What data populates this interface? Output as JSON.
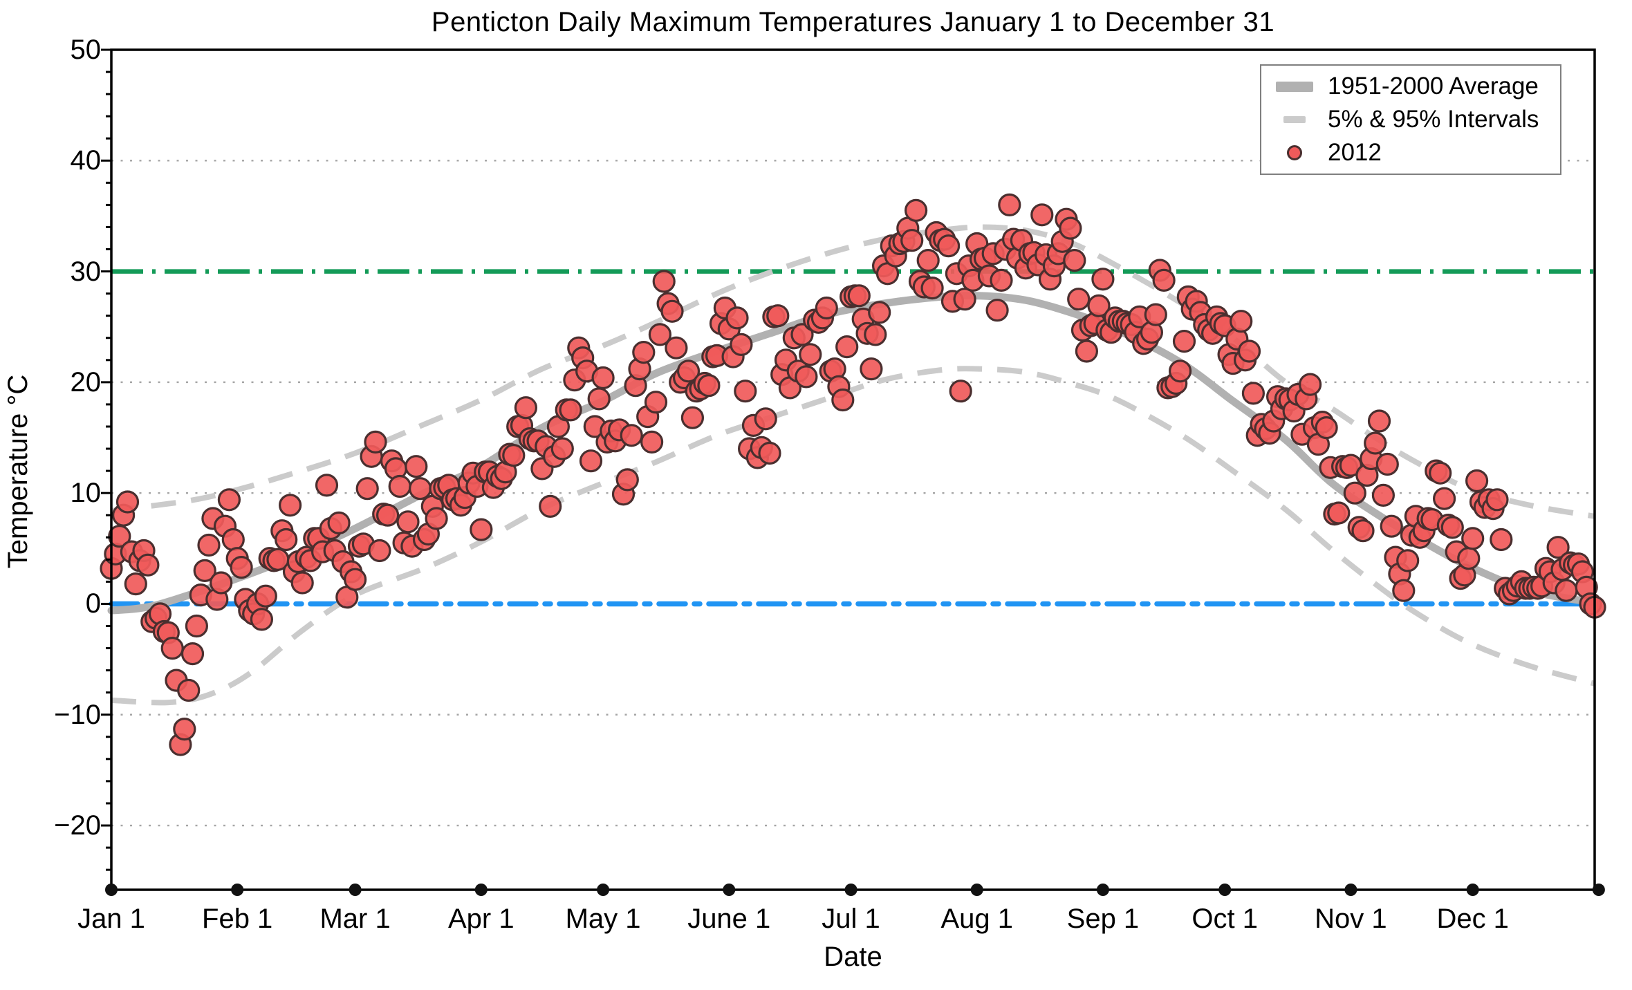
{
  "title": "Penticton Daily Maximum Temperatures January 1 to December 31",
  "legend": {
    "items": [
      {
        "label": "1951-2000 Average",
        "swatch": "thick-gray-line"
      },
      {
        "label": "5% & 95% Intervals",
        "swatch": "gray-dash"
      },
      {
        "label": "2012",
        "swatch": "red-dot"
      }
    ]
  },
  "colors": {
    "scatter_fill": "#f05a5a",
    "scatter_edge": "#4a2f2f",
    "average_line": "#b1b1b1",
    "interval_line": "#cbcbcb",
    "line_30c": "#149b58",
    "line_0c": "#2094f3",
    "gridline": "#a5a5a5",
    "axis": "#000000",
    "legend_border": "#7f7f7f",
    "month_dot": "#111111"
  },
  "chart_data": {
    "type": "scatter",
    "title": "Penticton Daily Maximum Temperatures January 1 to December 31",
    "xlabel": "Date",
    "ylabel": "Temperature °C",
    "ylim": [
      -25.8,
      50
    ],
    "grid": "dotted horizontal at 10-degree steps",
    "legend_position": "top-right",
    "y_ticks": [
      {
        "label": "50",
        "value": 50
      },
      {
        "label": "40",
        "value": 40
      },
      {
        "label": "30",
        "value": 30
      },
      {
        "label": "20",
        "value": 20
      },
      {
        "label": "10",
        "value": 10
      },
      {
        "label": "0",
        "value": 0
      },
      {
        "label": "−10",
        "value": -10
      },
      {
        "label": "−20",
        "value": -20
      }
    ],
    "gridline_values": [
      40,
      20,
      10,
      -10,
      -20
    ],
    "months": [
      {
        "label": "Jan 1",
        "day": 1
      },
      {
        "label": "Feb 1",
        "day": 32
      },
      {
        "label": "Mar 1",
        "day": 61
      },
      {
        "label": "Apr 1",
        "day": 92
      },
      {
        "label": "May 1",
        "day": 122
      },
      {
        "label": "June 1",
        "day": 153
      },
      {
        "label": "Jul 1",
        "day": 183
      },
      {
        "label": "Aug 1",
        "day": 214
      },
      {
        "label": "Sep 1",
        "day": 245
      },
      {
        "label": "Oct 1",
        "day": 275
      },
      {
        "label": "Nov 1",
        "day": 306
      },
      {
        "label": "Dec 1",
        "day": 336
      }
    ],
    "axis_end_day": 367,
    "reference_lines": [
      {
        "name": "30C-threshold",
        "value": 30,
        "style": "dash-dot",
        "color": "#149b58"
      },
      {
        "name": "0C-freezing",
        "value": 0,
        "style": "dash-dot",
        "color": "#2094f3"
      }
    ],
    "series": [
      {
        "name": "1951-2000 Average",
        "style": "thick-solid-gray",
        "anchors": [
          [
            1,
            -0.6
          ],
          [
            8,
            -0.4
          ],
          [
            15,
            0.2
          ],
          [
            32,
            2.3
          ],
          [
            46,
            4.3
          ],
          [
            61,
            6.8
          ],
          [
            78,
            10.0
          ],
          [
            92,
            12.4
          ],
          [
            107,
            15.9
          ],
          [
            122,
            18.3
          ],
          [
            135,
            20.8
          ],
          [
            150,
            22.8
          ],
          [
            163,
            24.4
          ],
          [
            177,
            26.1
          ],
          [
            191,
            27.1
          ],
          [
            205,
            27.7
          ],
          [
            215,
            27.8
          ],
          [
            226,
            27.4
          ],
          [
            237,
            26.3
          ],
          [
            248,
            24.8
          ],
          [
            264,
            21.8
          ],
          [
            277,
            18.3
          ],
          [
            290,
            14.8
          ],
          [
            301,
            11.0
          ],
          [
            312,
            8.2
          ],
          [
            322,
            6.0
          ],
          [
            335,
            3.4
          ],
          [
            350,
            1.2
          ],
          [
            366,
            0.1
          ]
        ]
      },
      {
        "name": "95% Interval",
        "style": "dashed-gray",
        "anchors": [
          [
            1,
            8.4
          ],
          [
            20,
            9.3
          ],
          [
            32,
            10.3
          ],
          [
            46,
            11.8
          ],
          [
            61,
            13.6
          ],
          [
            78,
            16.2
          ],
          [
            92,
            18.4
          ],
          [
            107,
            21.2
          ],
          [
            122,
            23.3
          ],
          [
            135,
            25.4
          ],
          [
            150,
            28.0
          ],
          [
            163,
            29.9
          ],
          [
            177,
            31.6
          ],
          [
            191,
            32.9
          ],
          [
            205,
            33.7
          ],
          [
            215,
            34.0
          ],
          [
            226,
            33.7
          ],
          [
            237,
            32.6
          ],
          [
            248,
            30.6
          ],
          [
            264,
            27.2
          ],
          [
            277,
            24.0
          ],
          [
            290,
            20.0
          ],
          [
            301,
            17.7
          ],
          [
            312,
            15.0
          ],
          [
            322,
            12.8
          ],
          [
            335,
            10.4
          ],
          [
            350,
            8.9
          ],
          [
            366,
            7.9
          ]
        ]
      },
      {
        "name": "5% Interval",
        "style": "dashed-gray",
        "anchors": [
          [
            1,
            -8.7
          ],
          [
            15,
            -8.9
          ],
          [
            25,
            -8.2
          ],
          [
            35,
            -6.3
          ],
          [
            48,
            -2.4
          ],
          [
            61,
            0.8
          ],
          [
            78,
            3.2
          ],
          [
            92,
            5.6
          ],
          [
            107,
            8.6
          ],
          [
            122,
            10.9
          ],
          [
            135,
            12.8
          ],
          [
            150,
            15.2
          ],
          [
            163,
            16.8
          ],
          [
            177,
            18.5
          ],
          [
            191,
            20.2
          ],
          [
            205,
            21.1
          ],
          [
            215,
            21.2
          ],
          [
            226,
            20.9
          ],
          [
            237,
            19.9
          ],
          [
            248,
            18.5
          ],
          [
            264,
            15.3
          ],
          [
            277,
            12.0
          ],
          [
            290,
            8.5
          ],
          [
            301,
            5.0
          ],
          [
            312,
            1.8
          ],
          [
            322,
            -0.8
          ],
          [
            335,
            -3.5
          ],
          [
            350,
            -5.6
          ],
          [
            366,
            -7.2
          ]
        ]
      }
    ],
    "points_2012": {
      "name": "2012",
      "start_day": 1,
      "unit": "°C",
      "values": [
        3.2,
        4.5,
        6.1,
        8.0,
        9.2,
        4.7,
        1.8,
        3.9,
        4.8,
        3.5,
        -1.6,
        -1.3,
        -0.9,
        -2.5,
        -2.6,
        -4.0,
        -6.9,
        -12.7,
        -11.3,
        -7.8,
        -4.5,
        -2.0,
        0.8,
        3.0,
        5.3,
        7.7,
        0.4,
        1.9,
        7.0,
        9.4,
        5.8,
        4.1,
        3.3,
        0.4,
        -0.6,
        -0.9,
        0.0,
        -1.4,
        0.7,
        4.1,
        3.9,
        4.0,
        6.6,
        5.8,
        8.9,
        2.9,
        3.8,
        1.9,
        4.2,
        3.9,
        5.9,
        5.9,
        4.7,
        10.7,
        6.8,
        4.8,
        7.3,
        3.8,
        0.6,
        2.9,
        2.2,
        5.2,
        5.4,
        10.4,
        13.3,
        14.6,
        4.8,
        8.1,
        8.0,
        12.9,
        12.2,
        10.6,
        5.5,
        7.4,
        5.2,
        12.4,
        10.4,
        5.8,
        6.3,
        8.8,
        7.7,
        10.4,
        10.5,
        10.7,
        9.4,
        9.5,
        8.9,
        9.6,
        10.9,
        11.8,
        10.6,
        6.7,
        11.9,
        11.9,
        10.5,
        11.5,
        11.3,
        11.9,
        13.5,
        13.4,
        16.0,
        16.1,
        17.7,
        14.9,
        14.7,
        14.7,
        12.2,
        14.2,
        8.8,
        13.3,
        16.0,
        14.0,
        17.5,
        17.5,
        20.2,
        23.1,
        22.2,
        21.0,
        12.9,
        16.0,
        18.5,
        20.4,
        14.6,
        15.6,
        14.7,
        15.7,
        9.9,
        11.2,
        15.2,
        19.7,
        21.2,
        22.7,
        16.9,
        14.6,
        18.2,
        24.3,
        29.1,
        27.1,
        26.4,
        23.1,
        20.0,
        20.4,
        21.0,
        16.8,
        19.2,
        19.4,
        19.9,
        19.7,
        22.3,
        22.4,
        25.3,
        26.7,
        24.8,
        22.3,
        25.8,
        23.4,
        19.2,
        14.0,
        16.1,
        13.2,
        14.1,
        16.7,
        13.6,
        25.9,
        26.0,
        20.7,
        22.0,
        19.5,
        24.0,
        21.0,
        24.3,
        20.5,
        22.5,
        25.6,
        25.4,
        25.8,
        26.7,
        21.0,
        21.2,
        19.6,
        18.4,
        23.2,
        27.7,
        27.8,
        27.8,
        25.7,
        24.4,
        21.2,
        24.3,
        26.3,
        30.5,
        29.8,
        32.3,
        31.4,
        32.5,
        32.7,
        33.9,
        32.8,
        35.5,
        29.1,
        28.6,
        31.0,
        28.5,
        33.5,
        32.8,
        32.9,
        32.3,
        27.3,
        29.8,
        19.2,
        27.5,
        30.5,
        29.2,
        32.5,
        31.1,
        31.2,
        29.6,
        31.6,
        26.5,
        29.2,
        32.0,
        36.0,
        32.9,
        31.2,
        32.8,
        30.3,
        31.6,
        31.7,
        30.6,
        35.1,
        31.5,
        29.3,
        30.5,
        31.6,
        32.7,
        34.7,
        33.9,
        31.0,
        27.5,
        24.7,
        22.8,
        25.1,
        25.3,
        26.9,
        29.3,
        24.7,
        24.5,
        25.8,
        25.5,
        25.5,
        25.3,
        25.2,
        24.5,
        25.9,
        23.5,
        23.9,
        24.5,
        26.1,
        30.1,
        29.2,
        19.5,
        19.6,
        19.9,
        21.0,
        23.7,
        27.7,
        26.6,
        27.3,
        26.3,
        25.2,
        24.7,
        24.4,
        25.9,
        25.3,
        25.1,
        22.5,
        21.7,
        23.9,
        25.5,
        22.0,
        22.8,
        19.0,
        15.2,
        16.2,
        15.8,
        15.4,
        16.5,
        18.7,
        17.6,
        18.5,
        18.4,
        17.4,
        18.9,
        15.3,
        18.5,
        19.8,
        15.9,
        14.4,
        16.4,
        15.9,
        12.3,
        8.1,
        8.2,
        12.4,
        12.3,
        12.5,
        10.0,
        6.9,
        6.6,
        11.6,
        13.1,
        14.5,
        16.5,
        9.8,
        12.6,
        7.0,
        4.2,
        2.7,
        1.2,
        3.9,
        6.2,
        7.9,
        6.0,
        6.6,
        7.7,
        7.6,
        12.0,
        11.8,
        9.5,
        7.1,
        6.9,
        4.7,
        2.3,
        2.6,
        4.1,
        5.9,
        11.1,
        9.2,
        8.7,
        9.4,
        8.6,
        9.4,
        5.8,
        1.4,
        0.9,
        1.2,
        1.6,
        2.0,
        1.4,
        1.4,
        1.5,
        1.4,
        1.6,
        3.2,
        2.9,
        1.9,
        5.1,
        3.1,
        1.2,
        3.7,
        3.5,
        3.6,
        2.9,
        1.5,
        0.0,
        -0.3
      ]
    }
  }
}
